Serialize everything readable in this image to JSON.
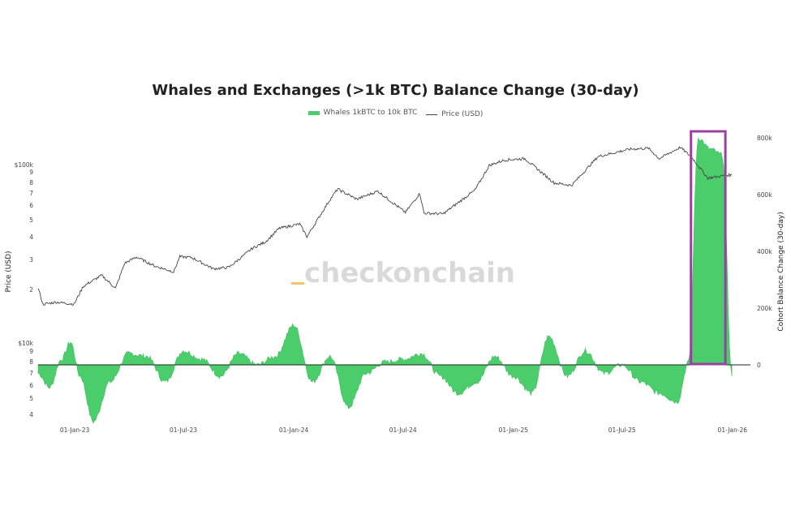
{
  "chart_data": {
    "type": "area",
    "title": "Whales and Exchanges (>1k BTC) Balance Change (30-day)",
    "watermark": "checkonchain",
    "series": [
      {
        "name": "Whales 1kBTC to 10k BTC",
        "type": "area",
        "axis": "right",
        "color": "#4ccd6c"
      },
      {
        "name": "Price (USD)",
        "type": "line",
        "axis": "left",
        "color": "#444444"
      }
    ],
    "left_axis": {
      "label": "Price (USD)",
      "scale": "log",
      "upper_ticks": [
        "$100k",
        "9",
        "8",
        "7",
        "6",
        "5",
        "4",
        "3",
        "2"
      ],
      "lower_ticks": [
        "$10k",
        "9",
        "8",
        "7",
        "6",
        "5",
        "4"
      ]
    },
    "right_axis": {
      "label": "Cohort Balance Change (30-day)",
      "ticks": [
        "800k",
        "600k",
        "400k",
        "200k",
        "0"
      ],
      "range": [
        -200000,
        800000
      ]
    },
    "x_axis": {
      "ticks": [
        "01-Jan-23",
        "01-Jul-23",
        "01-Jan-24",
        "01-Jul-24",
        "01-Jan-25",
        "01-Jul-25",
        "01-Jan-26"
      ],
      "range": [
        "2022-11",
        "2026-01"
      ]
    },
    "price_points": [
      [
        "2022-11-01",
        20400
      ],
      [
        "2022-11-09",
        16500
      ],
      [
        "2022-12-01",
        17000
      ],
      [
        "2022-12-31",
        16550
      ],
      [
        "2023-01-15",
        20800
      ],
      [
        "2023-02-15",
        24000
      ],
      [
        "2023-03-10",
        20300
      ],
      [
        "2023-03-25",
        28000
      ],
      [
        "2023-04-14",
        30400
      ],
      [
        "2023-05-15",
        27000
      ],
      [
        "2023-06-15",
        25100
      ],
      [
        "2023-06-25",
        30500
      ],
      [
        "2023-07-15",
        30200
      ],
      [
        "2023-08-20",
        26100
      ],
      [
        "2023-09-15",
        26600
      ],
      [
        "2023-10-24",
        34000
      ],
      [
        "2023-11-15",
        37000
      ],
      [
        "2023-12-08",
        44000
      ],
      [
        "2024-01-11",
        46500
      ],
      [
        "2024-01-23",
        39500
      ],
      [
        "2024-02-28",
        62000
      ],
      [
        "2024-03-14",
        73000
      ],
      [
        "2024-04-15",
        64000
      ],
      [
        "2024-05-20",
        71000
      ],
      [
        "2024-07-05",
        54000
      ],
      [
        "2024-07-29",
        69000
      ],
      [
        "2024-08-05",
        53500
      ],
      [
        "2024-09-06",
        53000
      ],
      [
        "2024-10-29",
        72000
      ],
      [
        "2024-11-22",
        99000
      ],
      [
        "2024-12-17",
        106000
      ],
      [
        "2025-01-20",
        108000
      ],
      [
        "2025-03-10",
        79000
      ],
      [
        "2025-04-08",
        76500
      ],
      [
        "2025-05-22",
        111000
      ],
      [
        "2025-07-14",
        122000
      ],
      [
        "2025-08-14",
        123500
      ],
      [
        "2025-09-01",
        108000
      ],
      [
        "2025-10-06",
        125000
      ],
      [
        "2025-10-25",
        110000
      ],
      [
        "2025-11-21",
        84000
      ],
      [
        "2025-12-20",
        87000
      ],
      [
        "2025-12-31",
        87500
      ]
    ],
    "balance_change_points": [
      [
        "2022-11-01",
        -30000
      ],
      [
        "2022-11-20",
        -80000
      ],
      [
        "2022-12-10",
        20000
      ],
      [
        "2022-12-25",
        80000
      ],
      [
        "2023-01-10",
        -40000
      ],
      [
        "2023-02-01",
        -200000
      ],
      [
        "2023-03-01",
        -60000
      ],
      [
        "2023-04-01",
        40000
      ],
      [
        "2023-05-01",
        30000
      ],
      [
        "2023-06-01",
        -60000
      ],
      [
        "2023-07-01",
        50000
      ],
      [
        "2023-08-01",
        20000
      ],
      [
        "2023-09-01",
        -40000
      ],
      [
        "2023-10-01",
        40000
      ],
      [
        "2023-11-01",
        0
      ],
      [
        "2023-12-01",
        30000
      ],
      [
        "2024-01-01",
        140000
      ],
      [
        "2024-02-01",
        -60000
      ],
      [
        "2024-03-01",
        30000
      ],
      [
        "2024-04-01",
        -150000
      ],
      [
        "2024-05-01",
        -30000
      ],
      [
        "2024-06-01",
        10000
      ],
      [
        "2024-07-01",
        20000
      ],
      [
        "2024-08-01",
        40000
      ],
      [
        "2024-09-01",
        -40000
      ],
      [
        "2024-10-01",
        -100000
      ],
      [
        "2024-11-01",
        -60000
      ],
      [
        "2024-12-01",
        30000
      ],
      [
        "2025-01-01",
        -40000
      ],
      [
        "2025-02-01",
        -100000
      ],
      [
        "2025-03-01",
        100000
      ],
      [
        "2025-04-01",
        -40000
      ],
      [
        "2025-05-01",
        50000
      ],
      [
        "2025-06-01",
        -30000
      ],
      [
        "2025-07-01",
        0
      ],
      [
        "2025-08-01",
        -60000
      ],
      [
        "2025-09-01",
        -100000
      ],
      [
        "2025-10-01",
        -130000
      ],
      [
        "2025-10-20",
        10000
      ],
      [
        "2025-11-05",
        800000
      ],
      [
        "2025-11-25",
        760000
      ],
      [
        "2025-12-15",
        740000
      ],
      [
        "2025-12-31",
        -40000
      ]
    ],
    "highlight": {
      "start": "2025-11-01",
      "end": "2025-12-31",
      "color": "#9b3fa0"
    },
    "grid": false,
    "legend_position": "top-center"
  }
}
